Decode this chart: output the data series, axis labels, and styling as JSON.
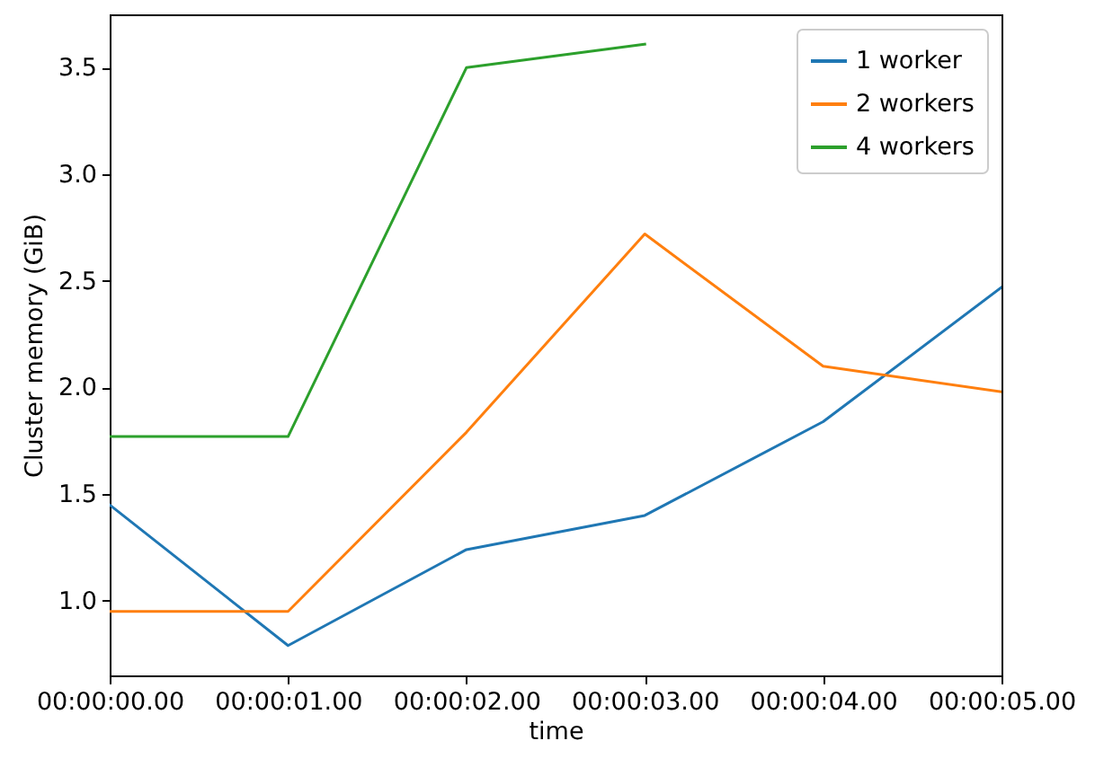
{
  "chart_data": {
    "type": "line",
    "xlabel": "time",
    "ylabel": "Cluster memory (GiB)",
    "categories": [
      "00:00:00.00",
      "00:00:01.00",
      "00:00:02.00",
      "00:00:03.00",
      "00:00:04.00",
      "00:00:05.00"
    ],
    "series": [
      {
        "name": "1 worker",
        "color": "#1f77b4",
        "values": [
          1.45,
          0.79,
          1.24,
          1.4,
          1.84,
          2.47
        ]
      },
      {
        "name": "2 workers",
        "color": "#ff7f0e",
        "values": [
          0.95,
          0.95,
          1.79,
          2.72,
          2.1,
          1.98
        ]
      },
      {
        "name": "4 workers",
        "color": "#2ca02c",
        "values": [
          1.77,
          1.77,
          3.5,
          3.61,
          null,
          null
        ]
      }
    ],
    "ylim": [
      0.65,
      3.75
    ],
    "yticks": [
      {
        "value": 1,
        "label": "1.0"
      },
      1.5,
      {
        "value": 2,
        "label": "2.0"
      },
      2.5,
      {
        "value": 3,
        "label": "3.0"
      },
      3.5
    ],
    "legend": "top right",
    "grid": false,
    "line_style": "solid"
  }
}
